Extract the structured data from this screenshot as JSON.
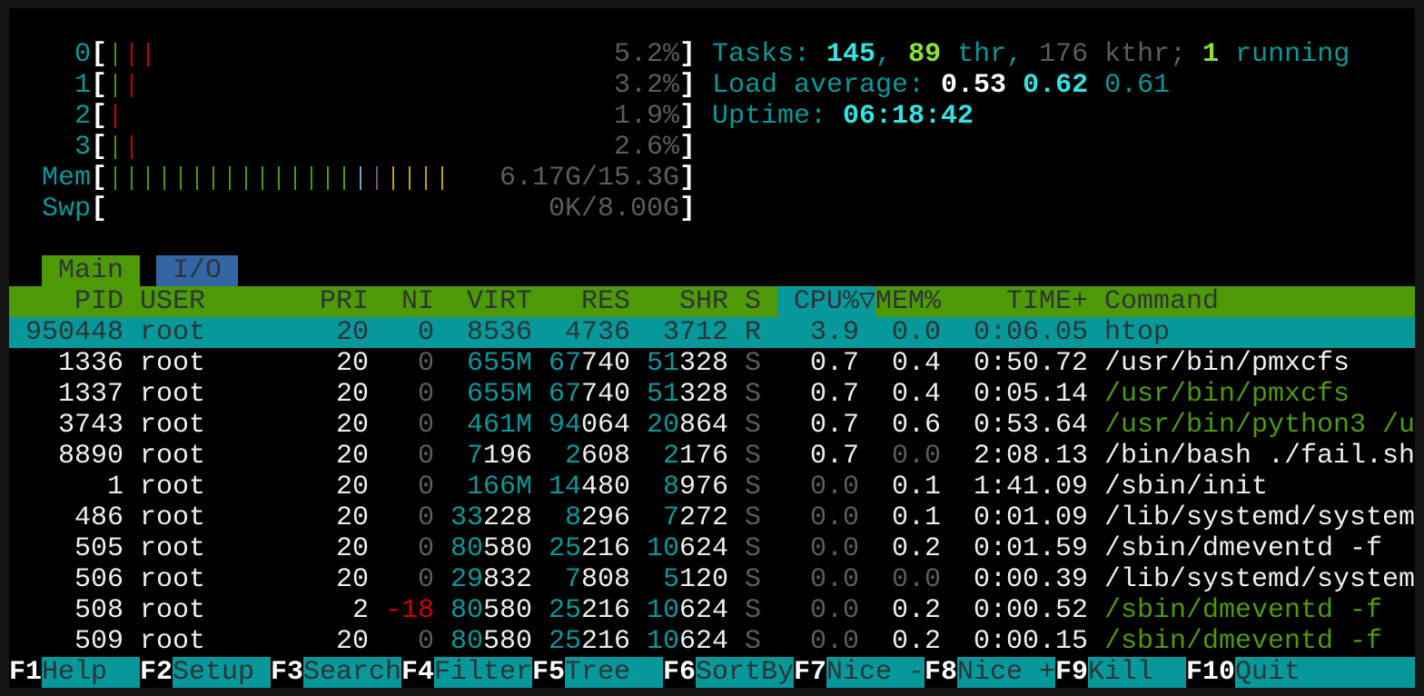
{
  "colors": {
    "cyan": "#06989a",
    "bright_cyan": "#34e2e2",
    "green": "#4e9a06",
    "bright_green": "#8ae234",
    "red": "#cc0000",
    "grey": "#5c5c5c",
    "blue": "#729fcf",
    "purple": "#75507b",
    "yellow": "#c4a000",
    "header_bg": "#4e9a06",
    "selection_bg": "#06989a",
    "tab_io_bg": "#3465a4"
  },
  "meters": {
    "cpus": [
      {
        "label": "0",
        "value": "5.2%",
        "bars": [
          "green",
          "red",
          "red"
        ]
      },
      {
        "label": "1",
        "value": "3.2%",
        "bars": [
          "green",
          "red"
        ]
      },
      {
        "label": "2",
        "value": "1.9%",
        "bars": [
          "red"
        ]
      },
      {
        "label": "3",
        "value": "2.6%",
        "bars": [
          "green",
          "red"
        ]
      }
    ],
    "mem": {
      "label": "Mem",
      "value": "6.17G/15.3G",
      "bars": [
        "green",
        "green",
        "green",
        "green",
        "green",
        "green",
        "green",
        "green",
        "green",
        "green",
        "green",
        "green",
        "green",
        "green",
        "green",
        "blue",
        "purple",
        "yellow",
        "yellow",
        "yellow",
        "yellow"
      ]
    },
    "swp": {
      "label": "Swp",
      "value": "0K/8.00G",
      "bars": []
    }
  },
  "info": {
    "tasks_label": "Tasks: ",
    "tasks": "145",
    "sep1": ", ",
    "threads": "89",
    "thr_label": " thr, ",
    "kthreads": "176",
    "kthr_label": " kthr; ",
    "running": "1",
    "running_label": " running",
    "load_label": "Load average: ",
    "load1": "0.53",
    "load5": "0.62",
    "load15": "0.61",
    "uptime_label": "Uptime: ",
    "uptime": "06:18:42"
  },
  "tabs": [
    {
      "label": "Main",
      "active": true
    },
    {
      "label": "I/O",
      "active": false
    }
  ],
  "columns": {
    "pid": "PID",
    "user": "USER",
    "pri": "PRI",
    "ni": "NI",
    "virt": "VIRT",
    "res": "RES",
    "shr": "SHR",
    "s": "S",
    "cpu": "CPU%▽",
    "mem": "MEM%",
    "time": "TIME+",
    "command": "Command",
    "sorted_by": "cpu"
  },
  "processes": [
    {
      "pid": "950448",
      "user": "root",
      "pri": "20",
      "ni": "0",
      "virt": "8536",
      "res": "4736",
      "shr": "3712",
      "s": "R",
      "cpu": "3.9",
      "mem": "0.0",
      "time": "0:06.05",
      "command": "htop",
      "selected": true,
      "thread": false
    },
    {
      "pid": "1336",
      "user": "root",
      "pri": "20",
      "ni": "0",
      "virt": "655M",
      "res": "67740",
      "shr": "51328",
      "s": "S",
      "cpu": "0.7",
      "mem": "0.4",
      "time": "0:50.72",
      "command": "/usr/bin/pmxcfs",
      "thread": false
    },
    {
      "pid": "1337",
      "user": "root",
      "pri": "20",
      "ni": "0",
      "virt": "655M",
      "res": "67740",
      "shr": "51328",
      "s": "S",
      "cpu": "0.7",
      "mem": "0.4",
      "time": "0:05.14",
      "command": "/usr/bin/pmxcfs",
      "thread": true
    },
    {
      "pid": "3743",
      "user": "root",
      "pri": "20",
      "ni": "0",
      "virt": "461M",
      "res": "94064",
      "shr": "20864",
      "s": "S",
      "cpu": "0.7",
      "mem": "0.6",
      "time": "0:53.64",
      "command": "/usr/bin/python3 /u",
      "thread": true
    },
    {
      "pid": "8890",
      "user": "root",
      "pri": "20",
      "ni": "0",
      "virt": "7196",
      "res": "2608",
      "shr": "2176",
      "s": "S",
      "cpu": "0.7",
      "mem": "0.0",
      "time": "2:08.13",
      "command": "/bin/bash ./fail.sh",
      "thread": false
    },
    {
      "pid": "1",
      "user": "root",
      "pri": "20",
      "ni": "0",
      "virt": "166M",
      "res": "14480",
      "shr": "8976",
      "s": "S",
      "cpu": "0.0",
      "mem": "0.1",
      "time": "1:41.09",
      "command": "/sbin/init",
      "thread": false
    },
    {
      "pid": "486",
      "user": "root",
      "pri": "20",
      "ni": "0",
      "virt": "33228",
      "res": "8296",
      "shr": "7272",
      "s": "S",
      "cpu": "0.0",
      "mem": "0.1",
      "time": "0:01.09",
      "command": "/lib/systemd/system",
      "thread": false
    },
    {
      "pid": "505",
      "user": "root",
      "pri": "20",
      "ni": "0",
      "virt": "80580",
      "res": "25216",
      "shr": "10624",
      "s": "S",
      "cpu": "0.0",
      "mem": "0.2",
      "time": "0:01.59",
      "command": "/sbin/dmeventd -f",
      "thread": false
    },
    {
      "pid": "506",
      "user": "root",
      "pri": "20",
      "ni": "0",
      "virt": "29832",
      "res": "7808",
      "shr": "5120",
      "s": "S",
      "cpu": "0.0",
      "mem": "0.0",
      "time": "0:00.39",
      "command": "/lib/systemd/system",
      "thread": false
    },
    {
      "pid": "508",
      "user": "root",
      "pri": "2",
      "ni": "-18",
      "virt": "80580",
      "res": "25216",
      "shr": "10624",
      "s": "S",
      "cpu": "0.0",
      "mem": "0.2",
      "time": "0:00.52",
      "command": "/sbin/dmeventd -f",
      "thread": true
    },
    {
      "pid": "509",
      "user": "root",
      "pri": "20",
      "ni": "0",
      "virt": "80580",
      "res": "25216",
      "shr": "10624",
      "s": "S",
      "cpu": "0.0",
      "mem": "0.2",
      "time": "0:00.15",
      "command": "/sbin/dmeventd -f",
      "thread": true
    }
  ],
  "footer": [
    {
      "key": "F1",
      "label": "Help"
    },
    {
      "key": "F2",
      "label": "Setup"
    },
    {
      "key": "F3",
      "label": "Search"
    },
    {
      "key": "F4",
      "label": "Filter"
    },
    {
      "key": "F5",
      "label": "Tree"
    },
    {
      "key": "F6",
      "label": "SortBy"
    },
    {
      "key": "F7",
      "label": "Nice -"
    },
    {
      "key": "F8",
      "label": "Nice +"
    },
    {
      "key": "F9",
      "label": "Kill"
    },
    {
      "key": "F10",
      "label": "Quit"
    }
  ]
}
